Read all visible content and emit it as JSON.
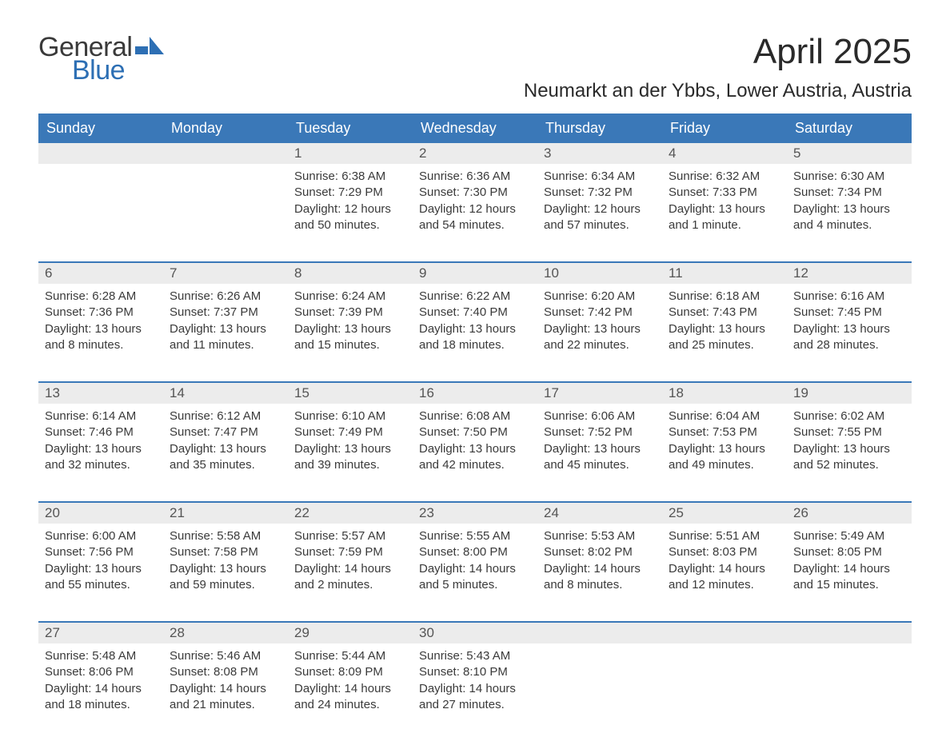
{
  "logo": {
    "text_general": "General",
    "text_blue": "Blue",
    "shape_color": "#2d6fb4"
  },
  "title": "April 2025",
  "location": "Neumarkt an der Ybbs, Lower Austria, Austria",
  "colors": {
    "header_bg": "#3a78b8",
    "header_text": "#ffffff",
    "daynum_bg": "#ececec",
    "daynum_text": "#555555",
    "body_text": "#3a3a3a",
    "week_border": "#3a78b8",
    "page_bg": "#ffffff"
  },
  "fonts": {
    "title_size_pt": 33,
    "location_size_pt": 18,
    "weekday_size_pt": 14,
    "daynum_size_pt": 13,
    "body_size_pt": 11
  },
  "weekdays": [
    "Sunday",
    "Monday",
    "Tuesday",
    "Wednesday",
    "Thursday",
    "Friday",
    "Saturday"
  ],
  "weeks": [
    [
      {
        "n": "",
        "sunrise": "",
        "sunset": "",
        "daylight1": "",
        "daylight2": ""
      },
      {
        "n": "",
        "sunrise": "",
        "sunset": "",
        "daylight1": "",
        "daylight2": ""
      },
      {
        "n": "1",
        "sunrise": "Sunrise: 6:38 AM",
        "sunset": "Sunset: 7:29 PM",
        "daylight1": "Daylight: 12 hours",
        "daylight2": "and 50 minutes."
      },
      {
        "n": "2",
        "sunrise": "Sunrise: 6:36 AM",
        "sunset": "Sunset: 7:30 PM",
        "daylight1": "Daylight: 12 hours",
        "daylight2": "and 54 minutes."
      },
      {
        "n": "3",
        "sunrise": "Sunrise: 6:34 AM",
        "sunset": "Sunset: 7:32 PM",
        "daylight1": "Daylight: 12 hours",
        "daylight2": "and 57 minutes."
      },
      {
        "n": "4",
        "sunrise": "Sunrise: 6:32 AM",
        "sunset": "Sunset: 7:33 PM",
        "daylight1": "Daylight: 13 hours",
        "daylight2": "and 1 minute."
      },
      {
        "n": "5",
        "sunrise": "Sunrise: 6:30 AM",
        "sunset": "Sunset: 7:34 PM",
        "daylight1": "Daylight: 13 hours",
        "daylight2": "and 4 minutes."
      }
    ],
    [
      {
        "n": "6",
        "sunrise": "Sunrise: 6:28 AM",
        "sunset": "Sunset: 7:36 PM",
        "daylight1": "Daylight: 13 hours",
        "daylight2": "and 8 minutes."
      },
      {
        "n": "7",
        "sunrise": "Sunrise: 6:26 AM",
        "sunset": "Sunset: 7:37 PM",
        "daylight1": "Daylight: 13 hours",
        "daylight2": "and 11 minutes."
      },
      {
        "n": "8",
        "sunrise": "Sunrise: 6:24 AM",
        "sunset": "Sunset: 7:39 PM",
        "daylight1": "Daylight: 13 hours",
        "daylight2": "and 15 minutes."
      },
      {
        "n": "9",
        "sunrise": "Sunrise: 6:22 AM",
        "sunset": "Sunset: 7:40 PM",
        "daylight1": "Daylight: 13 hours",
        "daylight2": "and 18 minutes."
      },
      {
        "n": "10",
        "sunrise": "Sunrise: 6:20 AM",
        "sunset": "Sunset: 7:42 PM",
        "daylight1": "Daylight: 13 hours",
        "daylight2": "and 22 minutes."
      },
      {
        "n": "11",
        "sunrise": "Sunrise: 6:18 AM",
        "sunset": "Sunset: 7:43 PM",
        "daylight1": "Daylight: 13 hours",
        "daylight2": "and 25 minutes."
      },
      {
        "n": "12",
        "sunrise": "Sunrise: 6:16 AM",
        "sunset": "Sunset: 7:45 PM",
        "daylight1": "Daylight: 13 hours",
        "daylight2": "and 28 minutes."
      }
    ],
    [
      {
        "n": "13",
        "sunrise": "Sunrise: 6:14 AM",
        "sunset": "Sunset: 7:46 PM",
        "daylight1": "Daylight: 13 hours",
        "daylight2": "and 32 minutes."
      },
      {
        "n": "14",
        "sunrise": "Sunrise: 6:12 AM",
        "sunset": "Sunset: 7:47 PM",
        "daylight1": "Daylight: 13 hours",
        "daylight2": "and 35 minutes."
      },
      {
        "n": "15",
        "sunrise": "Sunrise: 6:10 AM",
        "sunset": "Sunset: 7:49 PM",
        "daylight1": "Daylight: 13 hours",
        "daylight2": "and 39 minutes."
      },
      {
        "n": "16",
        "sunrise": "Sunrise: 6:08 AM",
        "sunset": "Sunset: 7:50 PM",
        "daylight1": "Daylight: 13 hours",
        "daylight2": "and 42 minutes."
      },
      {
        "n": "17",
        "sunrise": "Sunrise: 6:06 AM",
        "sunset": "Sunset: 7:52 PM",
        "daylight1": "Daylight: 13 hours",
        "daylight2": "and 45 minutes."
      },
      {
        "n": "18",
        "sunrise": "Sunrise: 6:04 AM",
        "sunset": "Sunset: 7:53 PM",
        "daylight1": "Daylight: 13 hours",
        "daylight2": "and 49 minutes."
      },
      {
        "n": "19",
        "sunrise": "Sunrise: 6:02 AM",
        "sunset": "Sunset: 7:55 PM",
        "daylight1": "Daylight: 13 hours",
        "daylight2": "and 52 minutes."
      }
    ],
    [
      {
        "n": "20",
        "sunrise": "Sunrise: 6:00 AM",
        "sunset": "Sunset: 7:56 PM",
        "daylight1": "Daylight: 13 hours",
        "daylight2": "and 55 minutes."
      },
      {
        "n": "21",
        "sunrise": "Sunrise: 5:58 AM",
        "sunset": "Sunset: 7:58 PM",
        "daylight1": "Daylight: 13 hours",
        "daylight2": "and 59 minutes."
      },
      {
        "n": "22",
        "sunrise": "Sunrise: 5:57 AM",
        "sunset": "Sunset: 7:59 PM",
        "daylight1": "Daylight: 14 hours",
        "daylight2": "and 2 minutes."
      },
      {
        "n": "23",
        "sunrise": "Sunrise: 5:55 AM",
        "sunset": "Sunset: 8:00 PM",
        "daylight1": "Daylight: 14 hours",
        "daylight2": "and 5 minutes."
      },
      {
        "n": "24",
        "sunrise": "Sunrise: 5:53 AM",
        "sunset": "Sunset: 8:02 PM",
        "daylight1": "Daylight: 14 hours",
        "daylight2": "and 8 minutes."
      },
      {
        "n": "25",
        "sunrise": "Sunrise: 5:51 AM",
        "sunset": "Sunset: 8:03 PM",
        "daylight1": "Daylight: 14 hours",
        "daylight2": "and 12 minutes."
      },
      {
        "n": "26",
        "sunrise": "Sunrise: 5:49 AM",
        "sunset": "Sunset: 8:05 PM",
        "daylight1": "Daylight: 14 hours",
        "daylight2": "and 15 minutes."
      }
    ],
    [
      {
        "n": "27",
        "sunrise": "Sunrise: 5:48 AM",
        "sunset": "Sunset: 8:06 PM",
        "daylight1": "Daylight: 14 hours",
        "daylight2": "and 18 minutes."
      },
      {
        "n": "28",
        "sunrise": "Sunrise: 5:46 AM",
        "sunset": "Sunset: 8:08 PM",
        "daylight1": "Daylight: 14 hours",
        "daylight2": "and 21 minutes."
      },
      {
        "n": "29",
        "sunrise": "Sunrise: 5:44 AM",
        "sunset": "Sunset: 8:09 PM",
        "daylight1": "Daylight: 14 hours",
        "daylight2": "and 24 minutes."
      },
      {
        "n": "30",
        "sunrise": "Sunrise: 5:43 AM",
        "sunset": "Sunset: 8:10 PM",
        "daylight1": "Daylight: 14 hours",
        "daylight2": "and 27 minutes."
      },
      {
        "n": "",
        "sunrise": "",
        "sunset": "",
        "daylight1": "",
        "daylight2": ""
      },
      {
        "n": "",
        "sunrise": "",
        "sunset": "",
        "daylight1": "",
        "daylight2": ""
      },
      {
        "n": "",
        "sunrise": "",
        "sunset": "",
        "daylight1": "",
        "daylight2": ""
      }
    ]
  ]
}
